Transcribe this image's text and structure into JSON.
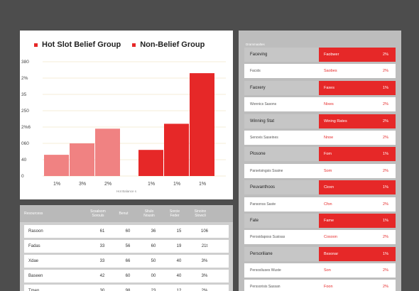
{
  "chart_data": {
    "type": "bar",
    "legend": [
      {
        "name": "Hot Slot Belief Group",
        "color": "#e62828"
      },
      {
        "name": "Non-Belief Group",
        "color": "#e62828"
      }
    ],
    "yticks": [
      "380",
      "2%",
      "35",
      "250",
      "2%6",
      "060",
      "40",
      "0"
    ],
    "ylim": [
      0,
      7
    ],
    "xlabel": "Hot Balance s",
    "series": [
      {
        "name": "Hot Slot Belief Group",
        "color": "#f08282",
        "categories": [
          "1%",
          "3%",
          "2%"
        ],
        "values": [
          1.3,
          2.0,
          2.9
        ]
      },
      {
        "name": "Non-Belief Group",
        "color": "#e62828",
        "categories": [
          "1%",
          "1%",
          "1%"
        ],
        "values": [
          1.6,
          3.2,
          6.3
        ]
      }
    ]
  },
  "table": {
    "headers": [
      "Resourcess",
      "Scsalsom",
      "Benut",
      "Sltulo",
      "Sorcie",
      "Sinoinn"
    ],
    "subheaders": [
      "",
      "Sorouls",
      "",
      "Nousin",
      "Feder",
      "Slowcli"
    ],
    "rows": [
      {
        "label": "Rasoon",
        "cells": [
          "61",
          "60",
          "36",
          "15",
          "106"
        ]
      },
      {
        "label": "Fadas",
        "cells": [
          "33",
          "56",
          "60",
          "19",
          "21t"
        ]
      },
      {
        "label": "Xdae",
        "cells": [
          "33",
          "66",
          "50",
          "40",
          "3%"
        ]
      },
      {
        "label": "Baseen",
        "cells": [
          "42",
          "60",
          "00",
          "40",
          "3%"
        ]
      },
      {
        "label": "Tmen",
        "cells": [
          "30",
          "98",
          "23",
          "12",
          "2%"
        ]
      }
    ]
  },
  "panel": {
    "title": "Drammaaltes",
    "rows": [
      {
        "style": "plain",
        "label": "Faceving",
        "value": "Faobwer",
        "pct": "2%"
      },
      {
        "style": "white",
        "label": "Facsts",
        "value": "Saobes",
        "pct": "2%"
      },
      {
        "style": "plain",
        "label": "Faoxery",
        "value": "Faxes",
        "pct": "1%"
      },
      {
        "style": "white",
        "label": "Wonnics Sasons",
        "value": "Nixes",
        "pct": "2%"
      },
      {
        "style": "plain",
        "label": "Winning Stat",
        "value": "Wining Rates",
        "pct": "2%"
      },
      {
        "style": "white",
        "label": "Senovis Saseines",
        "value": "Nnoe",
        "pct": "2%"
      },
      {
        "style": "plain",
        "label": "Plosone",
        "value": "Fom",
        "pct": "1%"
      },
      {
        "style": "white",
        "label": "Parsetsingsis Ssaine",
        "value": "Som",
        "pct": "2%"
      },
      {
        "style": "plain",
        "label": "Peuvanthoos",
        "value": "Cioxn",
        "pct": "1%"
      },
      {
        "style": "white",
        "label": "Pansonss Saste",
        "value": "Cfon",
        "pct": "2%"
      },
      {
        "style": "plain",
        "label": "Fate",
        "value": "Fame",
        "pct": "1%"
      },
      {
        "style": "white",
        "label": "Perosidaposs Susisas",
        "value": "Cosoon",
        "pct": "2%"
      },
      {
        "style": "plain",
        "label": "Persoriliane",
        "value": "Bxsonar",
        "pct": "1%"
      },
      {
        "style": "white",
        "label": "Persosliuses Wuste",
        "value": "Son",
        "pct": "2%"
      },
      {
        "style": "white",
        "label": "Perssorisis Sassan",
        "value": "Foon",
        "pct": "2%"
      }
    ]
  }
}
